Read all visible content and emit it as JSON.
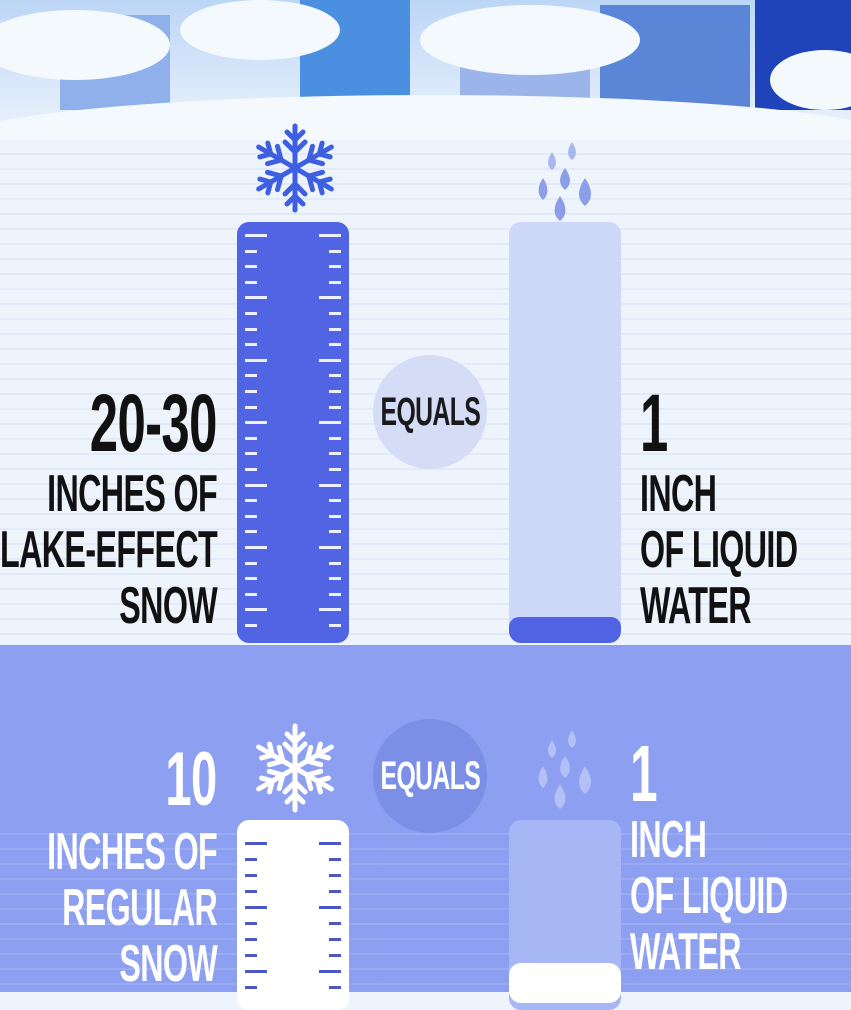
{
  "top": {
    "number": "20-30",
    "left_lines": [
      "INCHES OF",
      "LAKE-EFFECT",
      "SNOW"
    ],
    "equals": "EQUALS",
    "right_number": "1",
    "right_lines": [
      "INCH",
      "OF LIQUID",
      "WATER"
    ],
    "snow_icon": "snowflake-icon",
    "water_icon": "water-drops-icon"
  },
  "bottom": {
    "number": "10",
    "left_lines": [
      "INCHES OF",
      "REGULAR",
      "SNOW"
    ],
    "equals": "EQUALS",
    "right_number": "1",
    "right_lines": [
      "INCH",
      "OF LIQUID",
      "WATER"
    ],
    "snow_icon": "snowflake-icon",
    "water_icon": "water-drops-icon"
  },
  "colors": {
    "accent": "#4f63e3",
    "lower_bg": "#8c9ff0",
    "upper_bg": "#eef4fc"
  }
}
